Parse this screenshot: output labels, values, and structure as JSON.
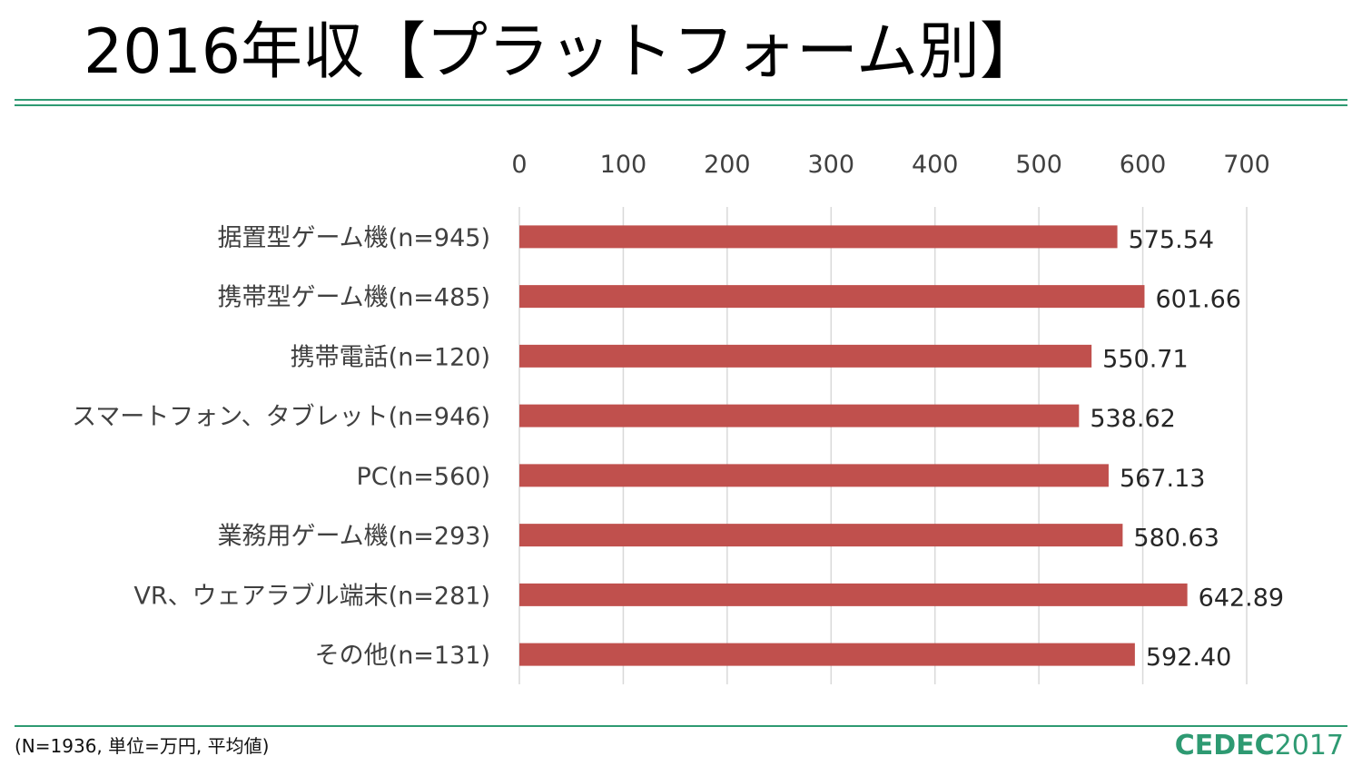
{
  "title": "2016年収【プラットフォーム別】",
  "footnote": "(N=1936, 単位=万円, 平均値)",
  "brand": {
    "name": "CEDEC",
    "year": "2017"
  },
  "colors": {
    "bar": "#c0504d",
    "rule": "#2e9a72",
    "grid": "#d9d9d9",
    "axis_text": "#404040"
  },
  "chart_data": {
    "type": "bar",
    "orientation": "horizontal",
    "x_axis_position": "top",
    "xlim": [
      0,
      700
    ],
    "xticks": [
      0,
      100,
      200,
      300,
      400,
      500,
      600,
      700
    ],
    "grid": true,
    "categories": [
      "据置型ゲーム機(n=945)",
      "携帯型ゲーム機(n=485)",
      "携帯電話(n=120)",
      "スマートフォン、タブレット(n=946)",
      "PC(n=560)",
      "業務用ゲーム機(n=293)",
      "VR、ウェアラブル端末(n=281)",
      "その他(n=131)"
    ],
    "values": [
      575.54,
      601.66,
      550.71,
      538.62,
      567.13,
      580.63,
      642.89,
      592.4
    ],
    "value_labels": [
      "575.54",
      "601.66",
      "550.71",
      "538.62",
      "567.13",
      "580.63",
      "642.89",
      "592.40"
    ]
  }
}
